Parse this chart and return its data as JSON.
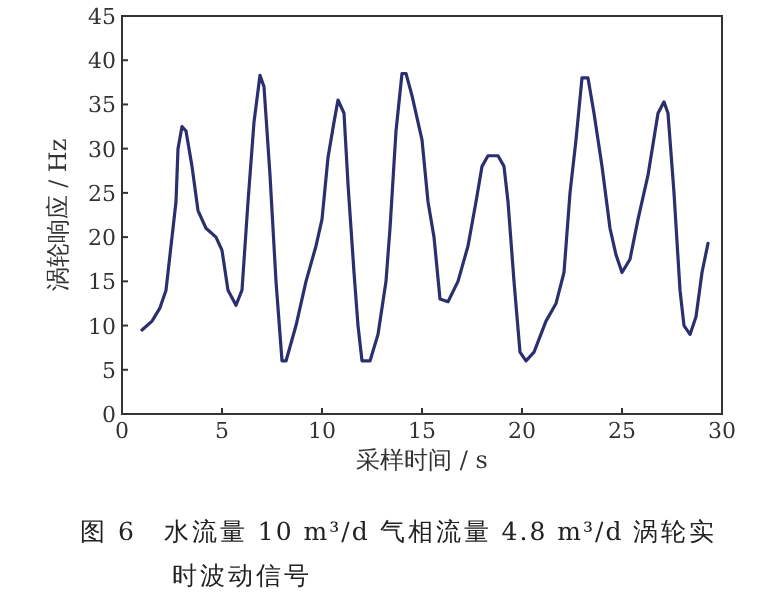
{
  "chart_data": {
    "type": "line",
    "xlabel": "采样时间 / s",
    "ylabel": "涡轮响应 / Hz",
    "annotations": [
      "图 6　水流量 10 m³/d 气相流量 4.8 m³/d 涡轮实时波动信号"
    ],
    "xlim": [
      0,
      30
    ],
    "xticks": [
      0,
      5,
      10,
      15,
      20,
      25,
      30
    ],
    "ylim": [
      0,
      45
    ],
    "yticks": [
      0,
      5,
      10,
      15,
      20,
      25,
      30,
      35,
      40,
      45
    ],
    "grid": false,
    "line_style": "solid",
    "series": [
      {
        "color": "#2b2f6e",
        "x": [
          1.0,
          1.5,
          1.9,
          2.2,
          2.5,
          2.7,
          2.8,
          3.0,
          3.2,
          3.5,
          3.8,
          4.2,
          4.7,
          5.0,
          5.3,
          5.7,
          6.0,
          6.3,
          6.6,
          6.9,
          7.1,
          7.4,
          7.7,
          8.0,
          8.2,
          8.7,
          9.2,
          9.7,
          10.0,
          10.3,
          10.6,
          10.8,
          11.1,
          11.3,
          11.6,
          11.8,
          12.0,
          12.4,
          12.8,
          13.2,
          13.4,
          13.7,
          14.0,
          14.2,
          14.5,
          15.0,
          15.3,
          15.6,
          15.9,
          16.3,
          16.8,
          17.3,
          17.7,
          18.0,
          18.3,
          18.8,
          19.1,
          19.3,
          19.6,
          19.9,
          20.2,
          20.6,
          21.2,
          21.7,
          22.1,
          22.4,
          22.7,
          23.0,
          23.3,
          23.6,
          24.0,
          24.4,
          24.7,
          25.0,
          25.4,
          25.8,
          26.3,
          26.8,
          27.1,
          27.3,
          27.6,
          27.9,
          28.1,
          28.4,
          28.7,
          29.0,
          29.3
        ],
        "values": [
          9.5,
          10.5,
          12,
          14,
          20,
          24,
          30,
          32.5,
          32,
          28,
          23,
          21,
          20,
          18.5,
          14,
          12.3,
          14,
          24,
          33,
          38.3,
          37,
          27,
          15,
          6,
          6,
          10,
          15,
          19,
          22,
          29,
          33,
          35.5,
          34,
          26,
          16,
          10,
          6,
          6,
          9,
          15,
          21,
          32,
          38.5,
          38.5,
          36,
          31,
          24,
          20,
          13,
          12.7,
          15,
          19,
          24,
          28,
          29.2,
          29.2,
          28,
          24,
          15,
          7,
          6,
          7,
          10.5,
          12.5,
          16,
          25,
          31,
          38,
          38,
          34,
          28,
          21,
          18,
          16,
          17.5,
          22,
          27,
          34,
          35.3,
          34,
          25,
          14,
          10,
          9,
          11,
          16,
          19.3
        ]
      }
    ]
  }
}
